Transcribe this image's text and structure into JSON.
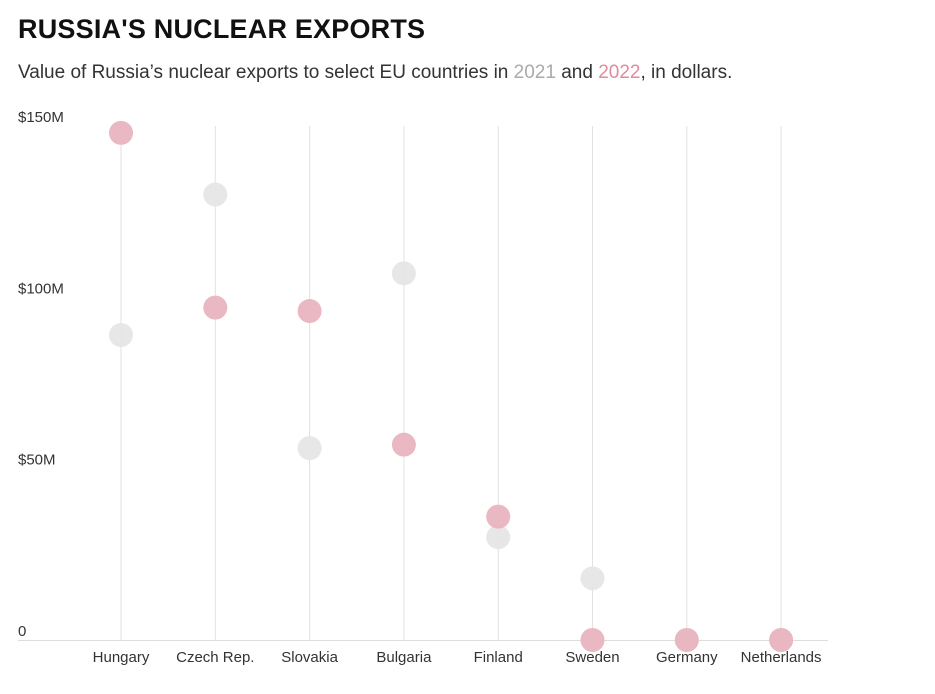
{
  "header": {
    "title": "RUSSIA'S NUCLEAR EXPORTS",
    "subtitle_prefix": "Value of Russia’s nuclear exports to select EU countries in ",
    "subtitle_year1": "2021",
    "subtitle_and": " and ",
    "subtitle_year2": "2022",
    "subtitle_suffix": ", in dollars."
  },
  "colors": {
    "series_2021": "#e6e6e6",
    "series_2022": "#e9b4bf",
    "year1_text": "#aaaaaa",
    "year2_text": "#e08aa0",
    "gridline": "#e2e2e2",
    "axis": "#dddddd"
  },
  "chart_data": {
    "type": "scatter",
    "title": "RUSSIA'S NUCLEAR EXPORTS",
    "xlabel": "",
    "ylabel": "",
    "ylim": [
      0,
      150
    ],
    "yticks": [
      {
        "value": 0,
        "label": "0"
      },
      {
        "value": 50,
        "label": "$50M"
      },
      {
        "value": 100,
        "label": "$100M"
      },
      {
        "value": 150,
        "label": "$150M"
      }
    ],
    "categories": [
      "Hungary",
      "Czech Rep.",
      "Slovakia",
      "Bulgaria",
      "Finland",
      "Sweden",
      "Germany",
      "Netherlands"
    ],
    "series": [
      {
        "name": "2021",
        "values": [
          89,
          130,
          56,
          107,
          30,
          18,
          0,
          0
        ]
      },
      {
        "name": "2022",
        "values": [
          148,
          97,
          96,
          57,
          36,
          0,
          0,
          0
        ]
      }
    ],
    "grid": true
  }
}
